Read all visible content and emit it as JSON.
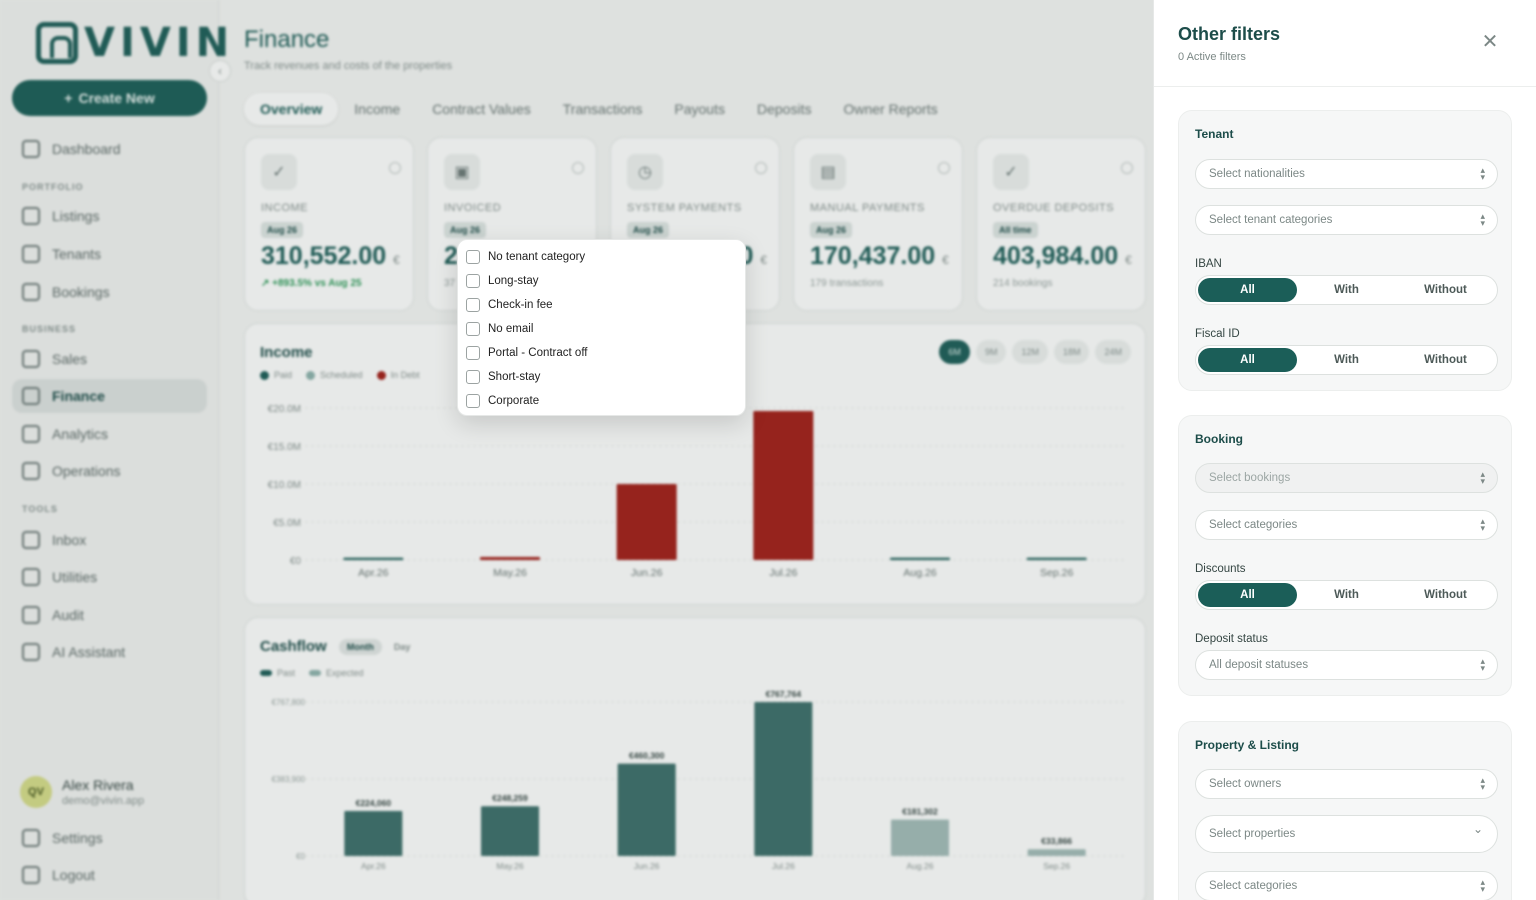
{
  "sidebar": {
    "logo": "VIVIN",
    "create_new": "Create New",
    "sections": {
      "portfolio": "PORTFOLIO",
      "business": "BUSINESS",
      "tools": "TOOLS"
    },
    "items": {
      "dashboard": "Dashboard",
      "listings": "Listings",
      "tenants": "Tenants",
      "bookings": "Bookings",
      "sales": "Sales",
      "finance": "Finance",
      "analytics": "Analytics",
      "operations": "Operations",
      "inbox": "Inbox",
      "utilities": "Utilities",
      "audit": "Audit",
      "ai_assistant": "AI Assistant"
    },
    "user": {
      "initials": "QV",
      "name": "Alex Rivera",
      "email": "demo@vivin.app"
    },
    "settings": "Settings",
    "logout": "Logout"
  },
  "main": {
    "title": "Finance",
    "subtitle": "Track revenues and costs of the properties",
    "tabs": [
      "Overview",
      "Income",
      "Contract Values",
      "Transactions",
      "Payouts",
      "Deposits",
      "Owner Reports"
    ],
    "kpis": [
      {
        "label": "INCOME",
        "badge": "Aug 26",
        "value": "310,552.00",
        "currency": "€",
        "foot": "↗ +893.5% vs Aug 25"
      },
      {
        "label": "INVOICED",
        "badge": "Aug 26",
        "value": "2",
        "currency": "",
        "foot": "37"
      },
      {
        "label": "SYSTEM PAYMENTS",
        "badge": "Aug 26",
        "value": "0",
        "currency": "€",
        "foot": ""
      },
      {
        "label": "MANUAL PAYMENTS",
        "badge": "Aug 26",
        "value": "170,437.00",
        "currency": "€",
        "foot": "179 transactions"
      },
      {
        "label": "OVERDUE DEPOSITS",
        "badge": "All time",
        "value": "403,984.00",
        "currency": "€",
        "foot": "214 bookings"
      }
    ],
    "income": {
      "title": "Income",
      "legend": [
        "Paid",
        "Scheduled",
        "In Debt"
      ],
      "ranges": [
        "6M",
        "9M",
        "12M",
        "18M",
        "24M"
      ],
      "active_range": "6M"
    },
    "cashflow": {
      "title": "Cashflow",
      "modes": [
        "Month",
        "Day"
      ],
      "legend": [
        "Past",
        "Expected"
      ]
    }
  },
  "chart_data": [
    {
      "type": "bar",
      "title": "Income",
      "categories": [
        "Apr.26",
        "May.26",
        "Jun.26",
        "Jul.26",
        "Aug.26",
        "Sep.26"
      ],
      "series": [
        {
          "name": "Paid",
          "values": [
            0.3,
            0,
            0,
            0,
            0.3,
            0.3
          ],
          "color": "#1d5e59"
        },
        {
          "name": "In Debt",
          "values": [
            0,
            0.4,
            10.0,
            19.6,
            0,
            0
          ],
          "color": "#a31e18"
        }
      ],
      "ylabel": "",
      "yticks": [
        "€0",
        "€5.0M",
        "€10.0M",
        "€15.0M",
        "€20.0M"
      ],
      "ylim": [
        0,
        20
      ],
      "unit": "M€"
    },
    {
      "type": "bar",
      "title": "Cashflow",
      "categories": [
        "Apr.26",
        "May.26",
        "Jun.26",
        "Jul.26",
        "Aug.26",
        "Sep.26"
      ],
      "values": [
        224060,
        248259,
        460300,
        767764,
        181302,
        33866
      ],
      "data_labels": [
        "€224,060",
        "€248,259",
        "€460,300",
        "€767,764",
        "€181,302",
        "€33,866"
      ],
      "kinds": [
        "Past",
        "Past",
        "Past",
        "Past",
        "Expected",
        "Expected"
      ],
      "colors": {
        "Past": "#3d6f6b",
        "Expected": "#a3bcb9"
      },
      "yticks": [
        "€0",
        "€383,900",
        "€767,800"
      ],
      "ylim": [
        0,
        767800
      ]
    }
  ],
  "dropdown": {
    "options": [
      "No tenant category",
      "Long-stay",
      "Check-in fee",
      "No email",
      "Portal - Contract off",
      "Short-stay",
      "Corporate"
    ]
  },
  "panel": {
    "title": "Other filters",
    "subtitle": "0 Active filters",
    "toggle_options": [
      "All",
      "With",
      "Without"
    ],
    "tenant": {
      "title": "Tenant",
      "nationalities_placeholder": "Select nationalities",
      "categories_placeholder": "Select tenant categories",
      "iban_label": "IBAN",
      "fiscal_label": "Fiscal ID"
    },
    "booking": {
      "title": "Booking",
      "bookings_placeholder": "Select bookings",
      "categories_placeholder": "Select categories",
      "discounts_label": "Discounts",
      "deposit_label": "Deposit status",
      "deposit_placeholder": "All deposit statuses"
    },
    "property": {
      "title": "Property & Listing",
      "owners_placeholder": "Select owners",
      "properties_placeholder": "Select properties",
      "categories_placeholder": "Select categories"
    }
  }
}
